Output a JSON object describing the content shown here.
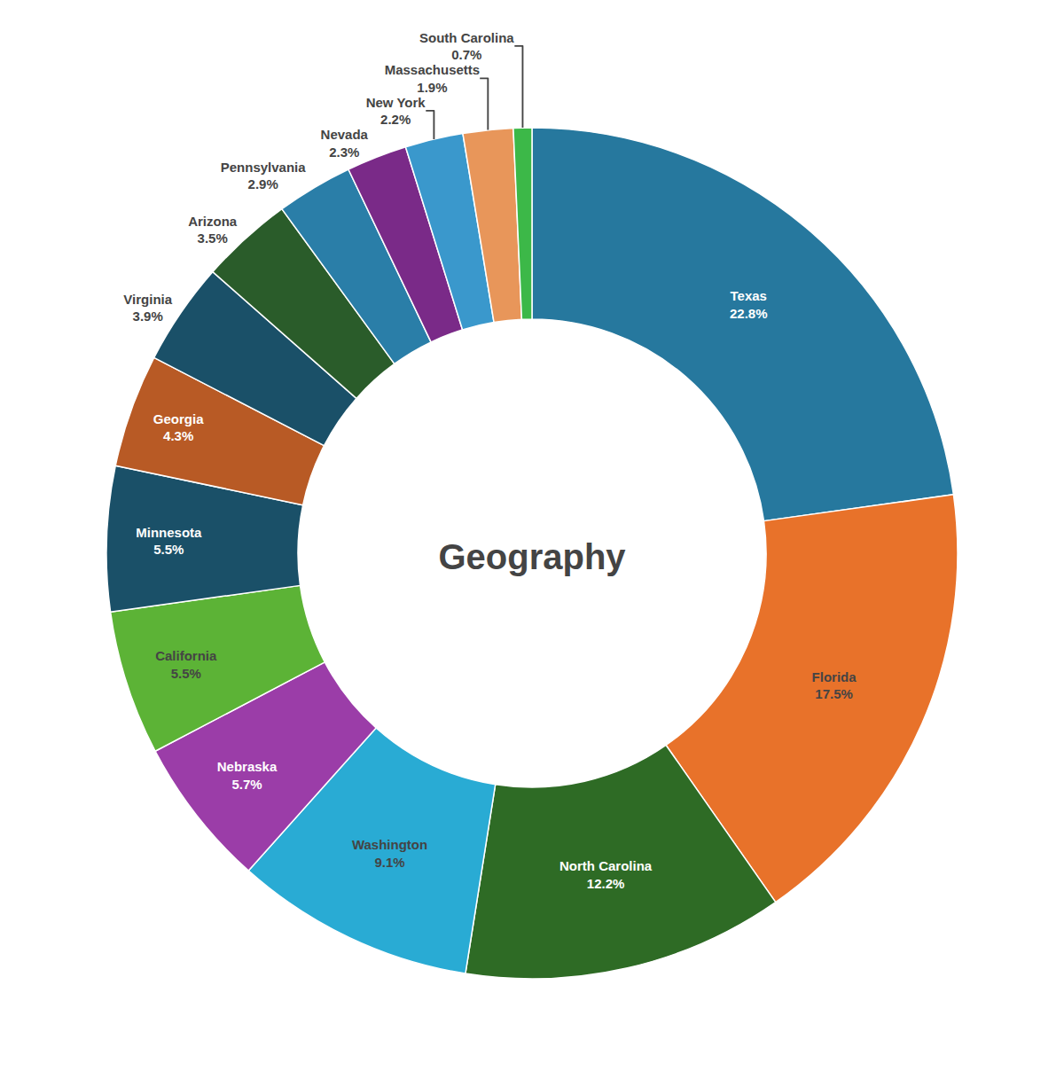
{
  "chart_data": {
    "type": "pie",
    "title": "Geography",
    "categories": [
      "Texas",
      "Florida",
      "North Carolina",
      "Washington",
      "Nebraska",
      "California",
      "Minnesota",
      "Georgia",
      "Virginia",
      "Arizona",
      "Pennsylvania",
      "Nevada",
      "New York",
      "Massachusetts",
      "South Carolina"
    ],
    "values": [
      22.8,
      17.5,
      12.2,
      9.1,
      5.7,
      5.5,
      5.5,
      4.3,
      3.9,
      3.5,
      2.9,
      2.3,
      2.2,
      1.9,
      0.7
    ],
    "value_labels": [
      "22.8%",
      "17.5%",
      "12.2%",
      "9.1%",
      "5.7%",
      "5.5%",
      "5.5%",
      "4.3%",
      "3.9%",
      "3.5%",
      "2.9%",
      "2.3%",
      "2.2%",
      "1.9%",
      "0.7%"
    ],
    "colors": [
      "#26789E",
      "#E8722A",
      "#2E6B25",
      "#29ABD4",
      "#9B3DA8",
      "#5CB336",
      "#1A5068",
      "#B85A25",
      "#1A5068",
      "#2A5C2A",
      "#2A7EA8",
      "#7A2A88",
      "#3A98CC",
      "#E8965A",
      "#3CB848"
    ],
    "data_labels": true
  }
}
